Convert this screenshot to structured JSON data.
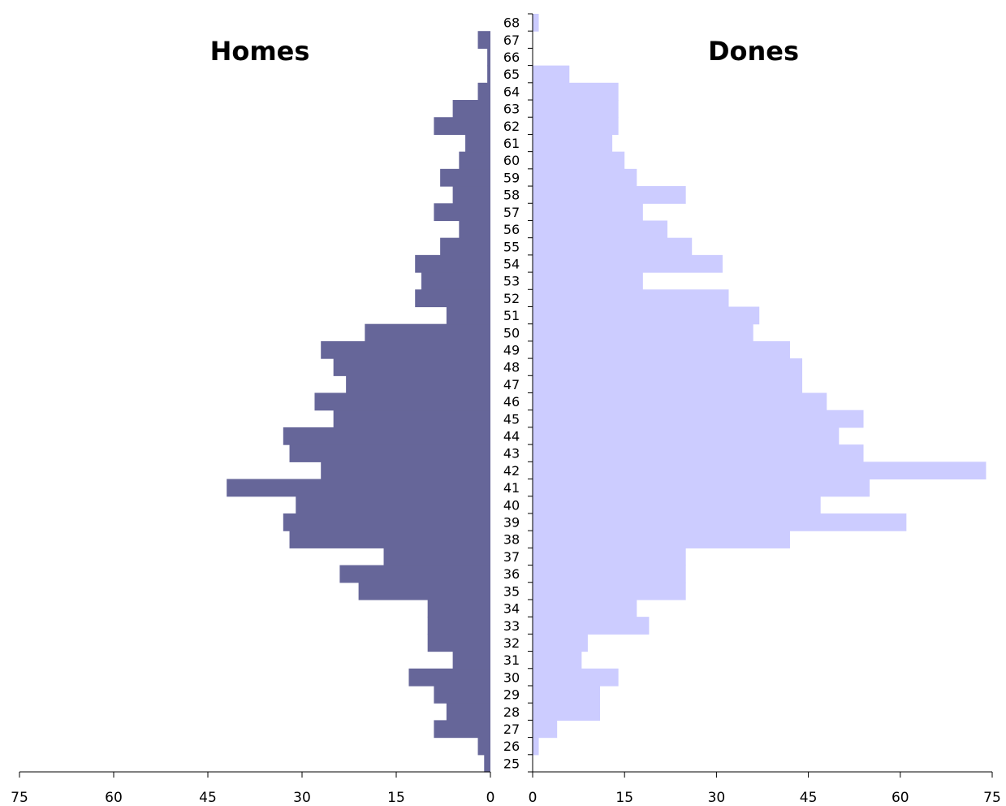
{
  "chart_data": {
    "type": "bar",
    "orientation": "horizontal",
    "layout": "population-pyramid",
    "categories": [
      25,
      26,
      27,
      28,
      29,
      30,
      31,
      32,
      33,
      34,
      35,
      36,
      37,
      38,
      39,
      40,
      41,
      42,
      43,
      44,
      45,
      46,
      47,
      48,
      49,
      50,
      51,
      52,
      53,
      54,
      55,
      56,
      57,
      58,
      59,
      60,
      61,
      62,
      63,
      64,
      65,
      66,
      67,
      68
    ],
    "series": [
      {
        "name": "Homes",
        "side": "left",
        "color": "#666699",
        "values": [
          1,
          2,
          9,
          7,
          9,
          13,
          6,
          10,
          10,
          10,
          21,
          24,
          17,
          32,
          33,
          31,
          42,
          27,
          32,
          33,
          25,
          28,
          23,
          25,
          27,
          20,
          7,
          12,
          11,
          12,
          8,
          5,
          9,
          6,
          8,
          5,
          4,
          9,
          6,
          2,
          0.5,
          0.5,
          2,
          0
        ]
      },
      {
        "name": "Dones",
        "side": "right",
        "color": "#ccccff",
        "values": [
          0,
          1,
          4,
          11,
          11,
          14,
          8,
          9,
          19,
          17,
          25,
          25,
          25,
          42,
          61,
          47,
          55,
          74,
          54,
          50,
          54,
          48,
          44,
          44,
          42,
          36,
          37,
          32,
          18,
          31,
          26,
          22,
          18,
          25,
          17,
          15,
          13,
          14,
          14,
          14,
          6,
          0,
          0,
          1
        ]
      }
    ],
    "xlim": [
      0,
      75
    ],
    "left_ticks": [
      "75",
      "60",
      "45",
      "30",
      "15",
      "0"
    ],
    "right_ticks": [
      "0",
      "15",
      "30",
      "45",
      "60",
      "75"
    ],
    "tick_values": [
      0,
      15,
      30,
      45,
      60,
      75
    ],
    "grid": false,
    "legend": "none"
  }
}
